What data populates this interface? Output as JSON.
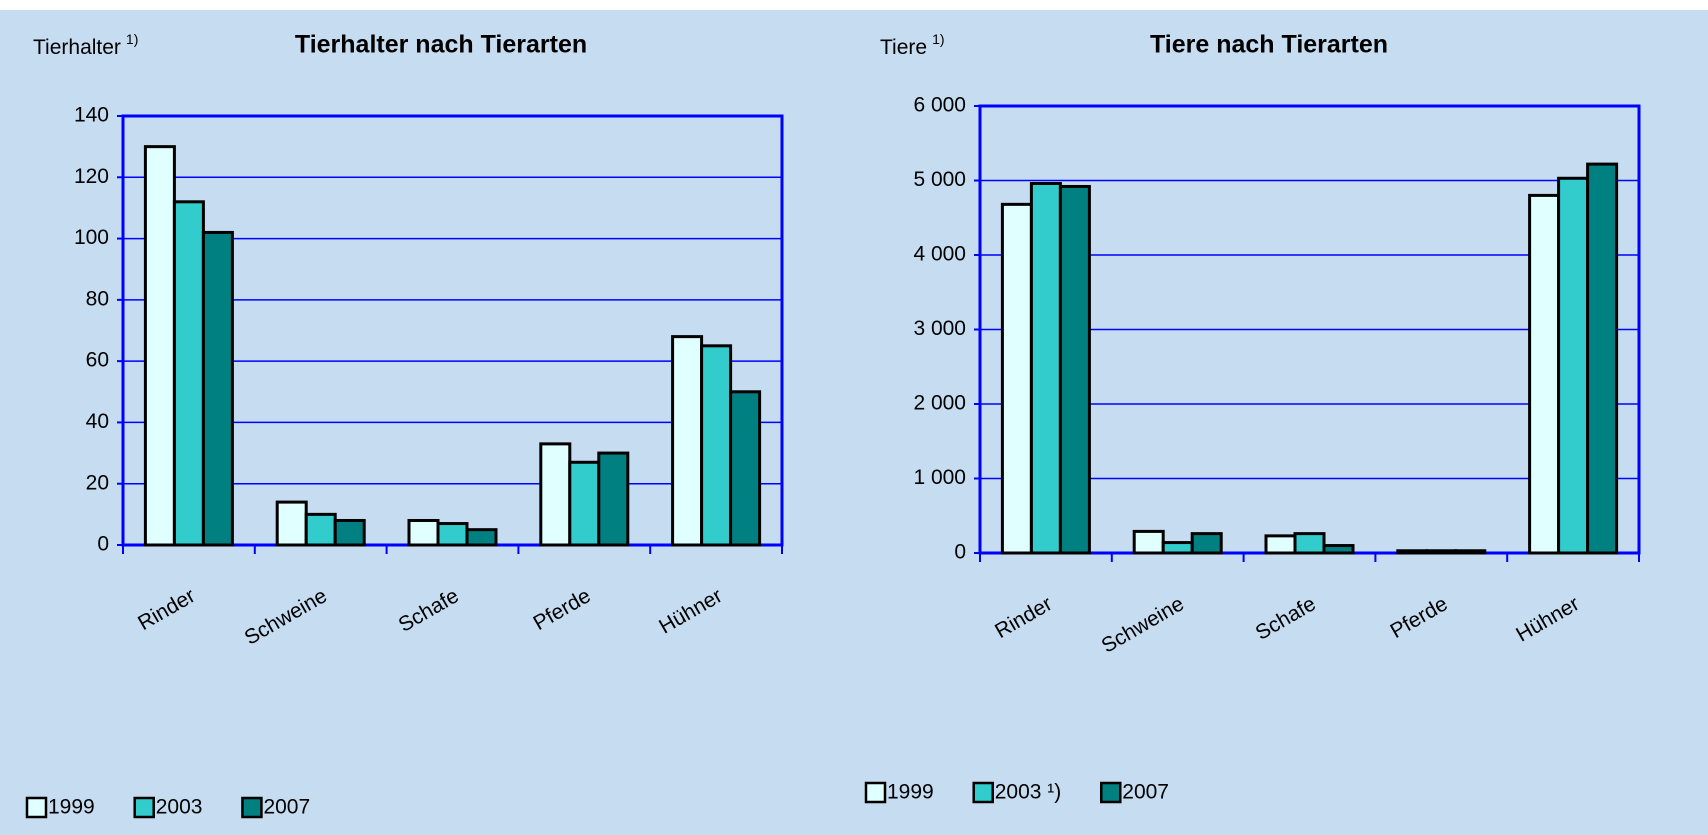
{
  "chart_data": [
    {
      "type": "bar",
      "title": "Tierhalter nach Tierarten",
      "y_label": "Tierhalter",
      "y_label_note": "1)",
      "categories": [
        "Rinder",
        "Schweine",
        "Schafe",
        "Pferde",
        "Hühner"
      ],
      "series": [
        {
          "name": "1999",
          "color": "#e0ffff",
          "values": [
            130,
            14,
            8,
            33,
            68
          ]
        },
        {
          "name": "2003",
          "color": "#33cccc",
          "values": [
            112,
            10,
            7,
            27,
            65
          ]
        },
        {
          "name": "2007",
          "color": "#008080",
          "values": [
            102,
            8,
            5,
            30,
            50
          ]
        }
      ],
      "ylim": [
        0,
        140
      ],
      "yticks": [
        0,
        20,
        40,
        60,
        80,
        100,
        120,
        140
      ],
      "grid": true
    },
    {
      "type": "bar",
      "title": "Tiere nach Tierarten",
      "y_label": "Tiere",
      "y_label_note": "1)",
      "categories": [
        "Rinder",
        "Schweine",
        "Schafe",
        "Pferde",
        "Hühner"
      ],
      "series": [
        {
          "name": "1999",
          "color": "#e0ffff",
          "values": [
            4680,
            290,
            230,
            30,
            4800
          ]
        },
        {
          "name": "2003 ¹)",
          "color": "#33cccc",
          "values": [
            4960,
            140,
            260,
            30,
            5030
          ]
        },
        {
          "name": "2007",
          "color": "#008080",
          "values": [
            4920,
            260,
            100,
            30,
            5220
          ]
        }
      ],
      "ylim": [
        0,
        6000
      ],
      "yticks": [
        0,
        {
          "value": 1000,
          "label": "1 000"
        },
        {
          "value": 2000,
          "label": "2 000"
        },
        {
          "value": 3000,
          "label": "3 000"
        },
        {
          "value": 4000,
          "label": "4 000"
        },
        {
          "value": 5000,
          "label": "5 000"
        },
        {
          "value": 6000,
          "label": "6 000"
        }
      ],
      "grid": true
    }
  ]
}
